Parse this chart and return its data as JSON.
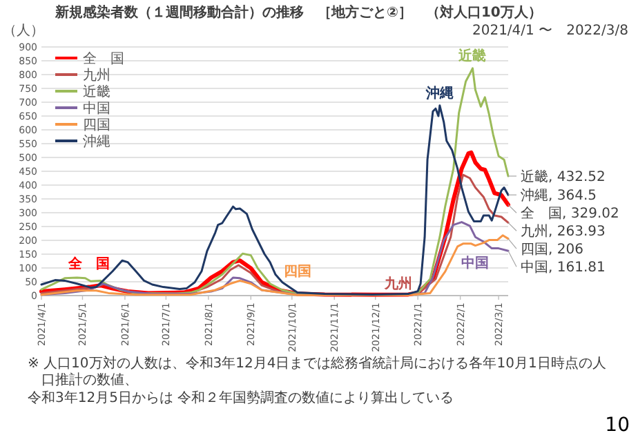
{
  "chart_data": {
    "type": "line",
    "title": "新規感染者数（１週間移動合計）の推移　［地方ごと②］　（対人口10万人）",
    "subtitle": "2021/4/1 〜　2022/3/8",
    "ylabel": "（人）",
    "xlim": [
      "2021-04-01",
      "2022-03-08"
    ],
    "ylim": [
      0,
      900
    ],
    "yticks": [
      0,
      50,
      100,
      150,
      200,
      250,
      300,
      350,
      400,
      450,
      500,
      550,
      600,
      650,
      700,
      750,
      800,
      850,
      900
    ],
    "xticks": [
      {
        "value": "2021-04-01",
        "label": "2021/4/1"
      },
      {
        "value": "2021-05-01",
        "label": "2021/5/1"
      },
      {
        "value": "2021-06-01",
        "label": "2021/6/1"
      },
      {
        "value": "2021-07-01",
        "label": "2021/7/1"
      },
      {
        "value": "2021-08-01",
        "label": "2021/8/1"
      },
      {
        "value": "2021-09-01",
        "label": "2021/9/1"
      },
      {
        "value": "2021-10-01",
        "label": "2021/10/1"
      },
      {
        "value": "2021-11-01",
        "label": "2021/11/1"
      },
      {
        "value": "2021-12-01",
        "label": "2021/12/1"
      },
      {
        "value": "2022-01-01",
        "label": "2022/1/1"
      },
      {
        "value": "2022-02-01",
        "label": "2022/2/1"
      },
      {
        "value": "2022-03-01",
        "label": "2022/3/1"
      }
    ],
    "grid": "y",
    "legend": "top left",
    "marker": "none",
    "line_style": "solid",
    "series": [
      {
        "name": "全　国",
        "color": "#ff0000",
        "x": [
          "2021-04-01",
          "2021-04-18",
          "2021-05-06",
          "2021-05-14",
          "2021-05-23",
          "2021-06-03",
          "2021-06-18",
          "2021-07-14",
          "2021-07-25",
          "2021-08-03",
          "2021-08-11",
          "2021-08-19",
          "2021-08-24",
          "2021-09-01",
          "2021-09-09",
          "2021-09-21",
          "2021-10-05",
          "2021-10-25",
          "2021-11-29",
          "2021-12-25",
          "2022-01-01",
          "2022-01-12",
          "2022-01-21",
          "2022-01-27",
          "2022-02-02",
          "2022-02-07",
          "2022-02-09",
          "2022-02-12",
          "2022-02-16",
          "2022-02-19",
          "2022-02-22",
          "2022-02-26",
          "2022-03-03",
          "2022-03-08"
        ],
        "values": [
          15,
          22,
          31,
          37,
          26,
          15,
          9,
          11,
          26,
          65,
          88,
          121,
          127,
          99,
          48,
          20,
          7,
          4,
          3,
          4,
          10,
          60,
          212,
          347,
          459,
          515,
          518,
          482,
          459,
          455,
          421,
          371,
          364,
          329.02
        ],
        "value_labels": [
          null,
          null,
          null,
          null,
          null,
          null,
          null,
          null,
          null,
          null,
          null,
          null,
          null,
          null,
          null,
          null,
          null,
          null,
          null,
          null,
          null,
          null,
          null,
          null,
          null,
          null,
          null,
          null,
          null,
          null,
          null,
          null,
          null,
          "全　国, 329.02"
        ]
      },
      {
        "name": "九州",
        "color": "#c0504d",
        "x": [
          "2021-04-01",
          "2021-05-11",
          "2021-05-17",
          "2021-05-26",
          "2021-06-09",
          "2021-07-19",
          "2021-07-31",
          "2021-08-11",
          "2021-08-17",
          "2021-08-23",
          "2021-09-01",
          "2021-09-09",
          "2021-09-21",
          "2021-10-05",
          "2021-10-25",
          "2021-11-29",
          "2021-12-25",
          "2022-01-01",
          "2022-01-14",
          "2022-01-25",
          "2022-01-30",
          "2022-02-03",
          "2022-02-08",
          "2022-02-12",
          "2022-02-18",
          "2022-02-22",
          "2022-02-26",
          "2022-03-03",
          "2022-03-08"
        ],
        "values": [
          9,
          31,
          43,
          26,
          9,
          9,
          31,
          60,
          93,
          110,
          82,
          37,
          15,
          6,
          4,
          3,
          4,
          8,
          60,
          212,
          357,
          437,
          425,
          391,
          357,
          313,
          290,
          285,
          263.93
        ],
        "value_labels": [
          null,
          null,
          null,
          null,
          null,
          null,
          null,
          null,
          null,
          null,
          null,
          null,
          null,
          null,
          null,
          null,
          null,
          null,
          null,
          null,
          null,
          null,
          null,
          null,
          null,
          null,
          null,
          null,
          "九州, 263.93"
        ]
      },
      {
        "name": "近畿",
        "color": "#9bbb59",
        "x": [
          "2021-04-01",
          "2021-04-10",
          "2021-04-18",
          "2021-04-27",
          "2021-05-03",
          "2021-05-07",
          "2021-05-14",
          "2021-05-20",
          "2021-05-29",
          "2021-06-09",
          "2021-07-08",
          "2021-07-19",
          "2021-07-25",
          "2021-08-03",
          "2021-08-11",
          "2021-08-20",
          "2021-08-26",
          "2021-09-01",
          "2021-09-06",
          "2021-09-15",
          "2021-09-24",
          "2021-10-05",
          "2021-10-25",
          "2021-11-29",
          "2021-12-25",
          "2022-01-01",
          "2022-01-10",
          "2022-01-17",
          "2022-01-21",
          "2022-01-27",
          "2022-01-31",
          "2022-02-05",
          "2022-02-08",
          "2022-02-10",
          "2022-02-12",
          "2022-02-16",
          "2022-02-19",
          "2022-02-22",
          "2022-02-25",
          "2022-03-01",
          "2022-03-05",
          "2022-03-08"
        ],
        "values": [
          22,
          43,
          63,
          65,
          63,
          52,
          54,
          37,
          20,
          9,
          7,
          11,
          20,
          48,
          76,
          121,
          152,
          146,
          99,
          43,
          20,
          7,
          4,
          3,
          4,
          10,
          60,
          212,
          323,
          459,
          661,
          775,
          803,
          823,
          745,
          684,
          718,
          657,
          583,
          505,
          492,
          432.52
        ],
        "value_labels": [
          null,
          null,
          null,
          null,
          null,
          null,
          null,
          null,
          null,
          null,
          null,
          null,
          null,
          null,
          null,
          null,
          null,
          null,
          null,
          null,
          null,
          null,
          null,
          null,
          null,
          null,
          null,
          null,
          null,
          null,
          null,
          null,
          null,
          null,
          null,
          null,
          null,
          null,
          null,
          null,
          null,
          "近畿, 432.52"
        ]
      },
      {
        "name": "中国",
        "color": "#8064a2",
        "x": [
          "2021-04-01",
          "2021-04-18",
          "2021-05-06",
          "2021-05-16",
          "2021-05-23",
          "2021-06-03",
          "2021-06-21",
          "2021-07-19",
          "2021-08-03",
          "2021-08-11",
          "2021-08-19",
          "2021-08-24",
          "2021-09-01",
          "2021-09-09",
          "2021-10-05",
          "2021-10-25",
          "2021-11-29",
          "2021-12-25",
          "2022-01-06",
          "2022-01-12",
          "2022-01-20",
          "2022-01-27",
          "2022-02-02",
          "2022-02-08",
          "2022-02-12",
          "2022-02-18",
          "2022-02-24",
          "2022-03-01",
          "2022-03-08"
        ],
        "values": [
          3,
          9,
          20,
          43,
          31,
          15,
          6,
          6,
          15,
          26,
          65,
          63,
          48,
          20,
          3,
          2,
          2,
          3,
          9,
          66,
          201,
          256,
          266,
          252,
          212,
          195,
          171,
          171,
          161.81
        ],
        "value_labels": [
          null,
          null,
          null,
          null,
          null,
          null,
          null,
          null,
          null,
          null,
          null,
          null,
          null,
          null,
          null,
          null,
          null,
          null,
          null,
          null,
          null,
          null,
          null,
          null,
          null,
          null,
          null,
          null,
          "中国, 161.81"
        ]
      },
      {
        "name": "四国",
        "color": "#f79646",
        "x": [
          "2021-04-01",
          "2021-04-27",
          "2021-05-11",
          "2021-05-20",
          "2021-06-09",
          "2021-07-19",
          "2021-08-06",
          "2021-08-17",
          "2021-08-24",
          "2021-09-01",
          "2021-09-09",
          "2021-10-05",
          "2021-10-25",
          "2021-11-29",
          "2021-12-25",
          "2022-01-10",
          "2022-01-21",
          "2022-01-30",
          "2022-02-03",
          "2022-02-09",
          "2022-02-12",
          "2022-02-18",
          "2022-02-22",
          "2022-02-28",
          "2022-03-04",
          "2022-03-08"
        ],
        "values": [
          3,
          18,
          18,
          9,
          3,
          3,
          20,
          43,
          54,
          43,
          20,
          2,
          2,
          2,
          2,
          9,
          87,
          178,
          188,
          188,
          181,
          191,
          201,
          201,
          218,
          206
        ],
        "value_labels": [
          null,
          null,
          null,
          null,
          null,
          null,
          null,
          null,
          null,
          null,
          null,
          null,
          null,
          null,
          null,
          null,
          null,
          null,
          null,
          null,
          null,
          null,
          null,
          null,
          null,
          "四国, 206"
        ]
      },
      {
        "name": "沖縄",
        "color": "#1f3864",
        "x": [
          "2021-04-01",
          "2021-04-11",
          "2021-04-18",
          "2021-04-27",
          "2021-05-07",
          "2021-05-11",
          "2021-05-16",
          "2021-05-23",
          "2021-05-30",
          "2021-06-03",
          "2021-06-09",
          "2021-06-15",
          "2021-06-21",
          "2021-06-29",
          "2021-07-11",
          "2021-07-16",
          "2021-07-22",
          "2021-07-27",
          "2021-07-31",
          "2021-08-06",
          "2021-08-08",
          "2021-08-11",
          "2021-08-14",
          "2021-08-19",
          "2021-08-21",
          "2021-08-24",
          "2021-08-29",
          "2021-09-02",
          "2021-09-06",
          "2021-09-11",
          "2021-09-15",
          "2021-09-19",
          "2021-09-24",
          "2021-09-29",
          "2021-10-05",
          "2021-10-25",
          "2021-11-29",
          "2021-12-25",
          "2022-01-01",
          "2022-01-03",
          "2022-01-06",
          "2022-01-08",
          "2022-01-12",
          "2022-01-14",
          "2022-01-16",
          "2022-01-17",
          "2022-01-20",
          "2022-01-22",
          "2022-01-26",
          "2022-01-30",
          "2022-02-02",
          "2022-02-07",
          "2022-02-11",
          "2022-02-16",
          "2022-02-18",
          "2022-02-22",
          "2022-02-24",
          "2022-02-26",
          "2022-03-03",
          "2022-03-05",
          "2022-03-08"
        ],
        "values": [
          40,
          56,
          54,
          43,
          29,
          31,
          54,
          88,
          127,
          121,
          88,
          54,
          40,
          31,
          24,
          26,
          48,
          88,
          161,
          228,
          256,
          262,
          285,
          322,
          313,
          315,
          296,
          240,
          200,
          150,
          121,
          76,
          48,
          31,
          11,
          6,
          4,
          6,
          16,
          43,
          212,
          492,
          667,
          677,
          650,
          688,
          627,
          560,
          526,
          459,
          391,
          303,
          269,
          269,
          290,
          290,
          272,
          301,
          380,
          391,
          364.5
        ],
        "value_labels": [
          null,
          null,
          null,
          null,
          null,
          null,
          null,
          null,
          null,
          null,
          null,
          null,
          null,
          null,
          null,
          null,
          null,
          null,
          null,
          null,
          null,
          null,
          null,
          null,
          null,
          null,
          null,
          null,
          null,
          null,
          null,
          null,
          null,
          null,
          null,
          null,
          null,
          null,
          null,
          null,
          null,
          null,
          null,
          null,
          null,
          null,
          null,
          null,
          null,
          null,
          null,
          null,
          null,
          null,
          null,
          null,
          null,
          null,
          null,
          null,
          "沖縄, 364.5"
        ]
      }
    ],
    "annotations": [
      "※ 人口10万対の人数は、令和3年12月4日までは総務省統計局における各年10月1日時点の人口推計の数値、",
      "令和3年12月5日からは 令和２年国勢調査の数値により算出している",
      "10"
    ]
  }
}
